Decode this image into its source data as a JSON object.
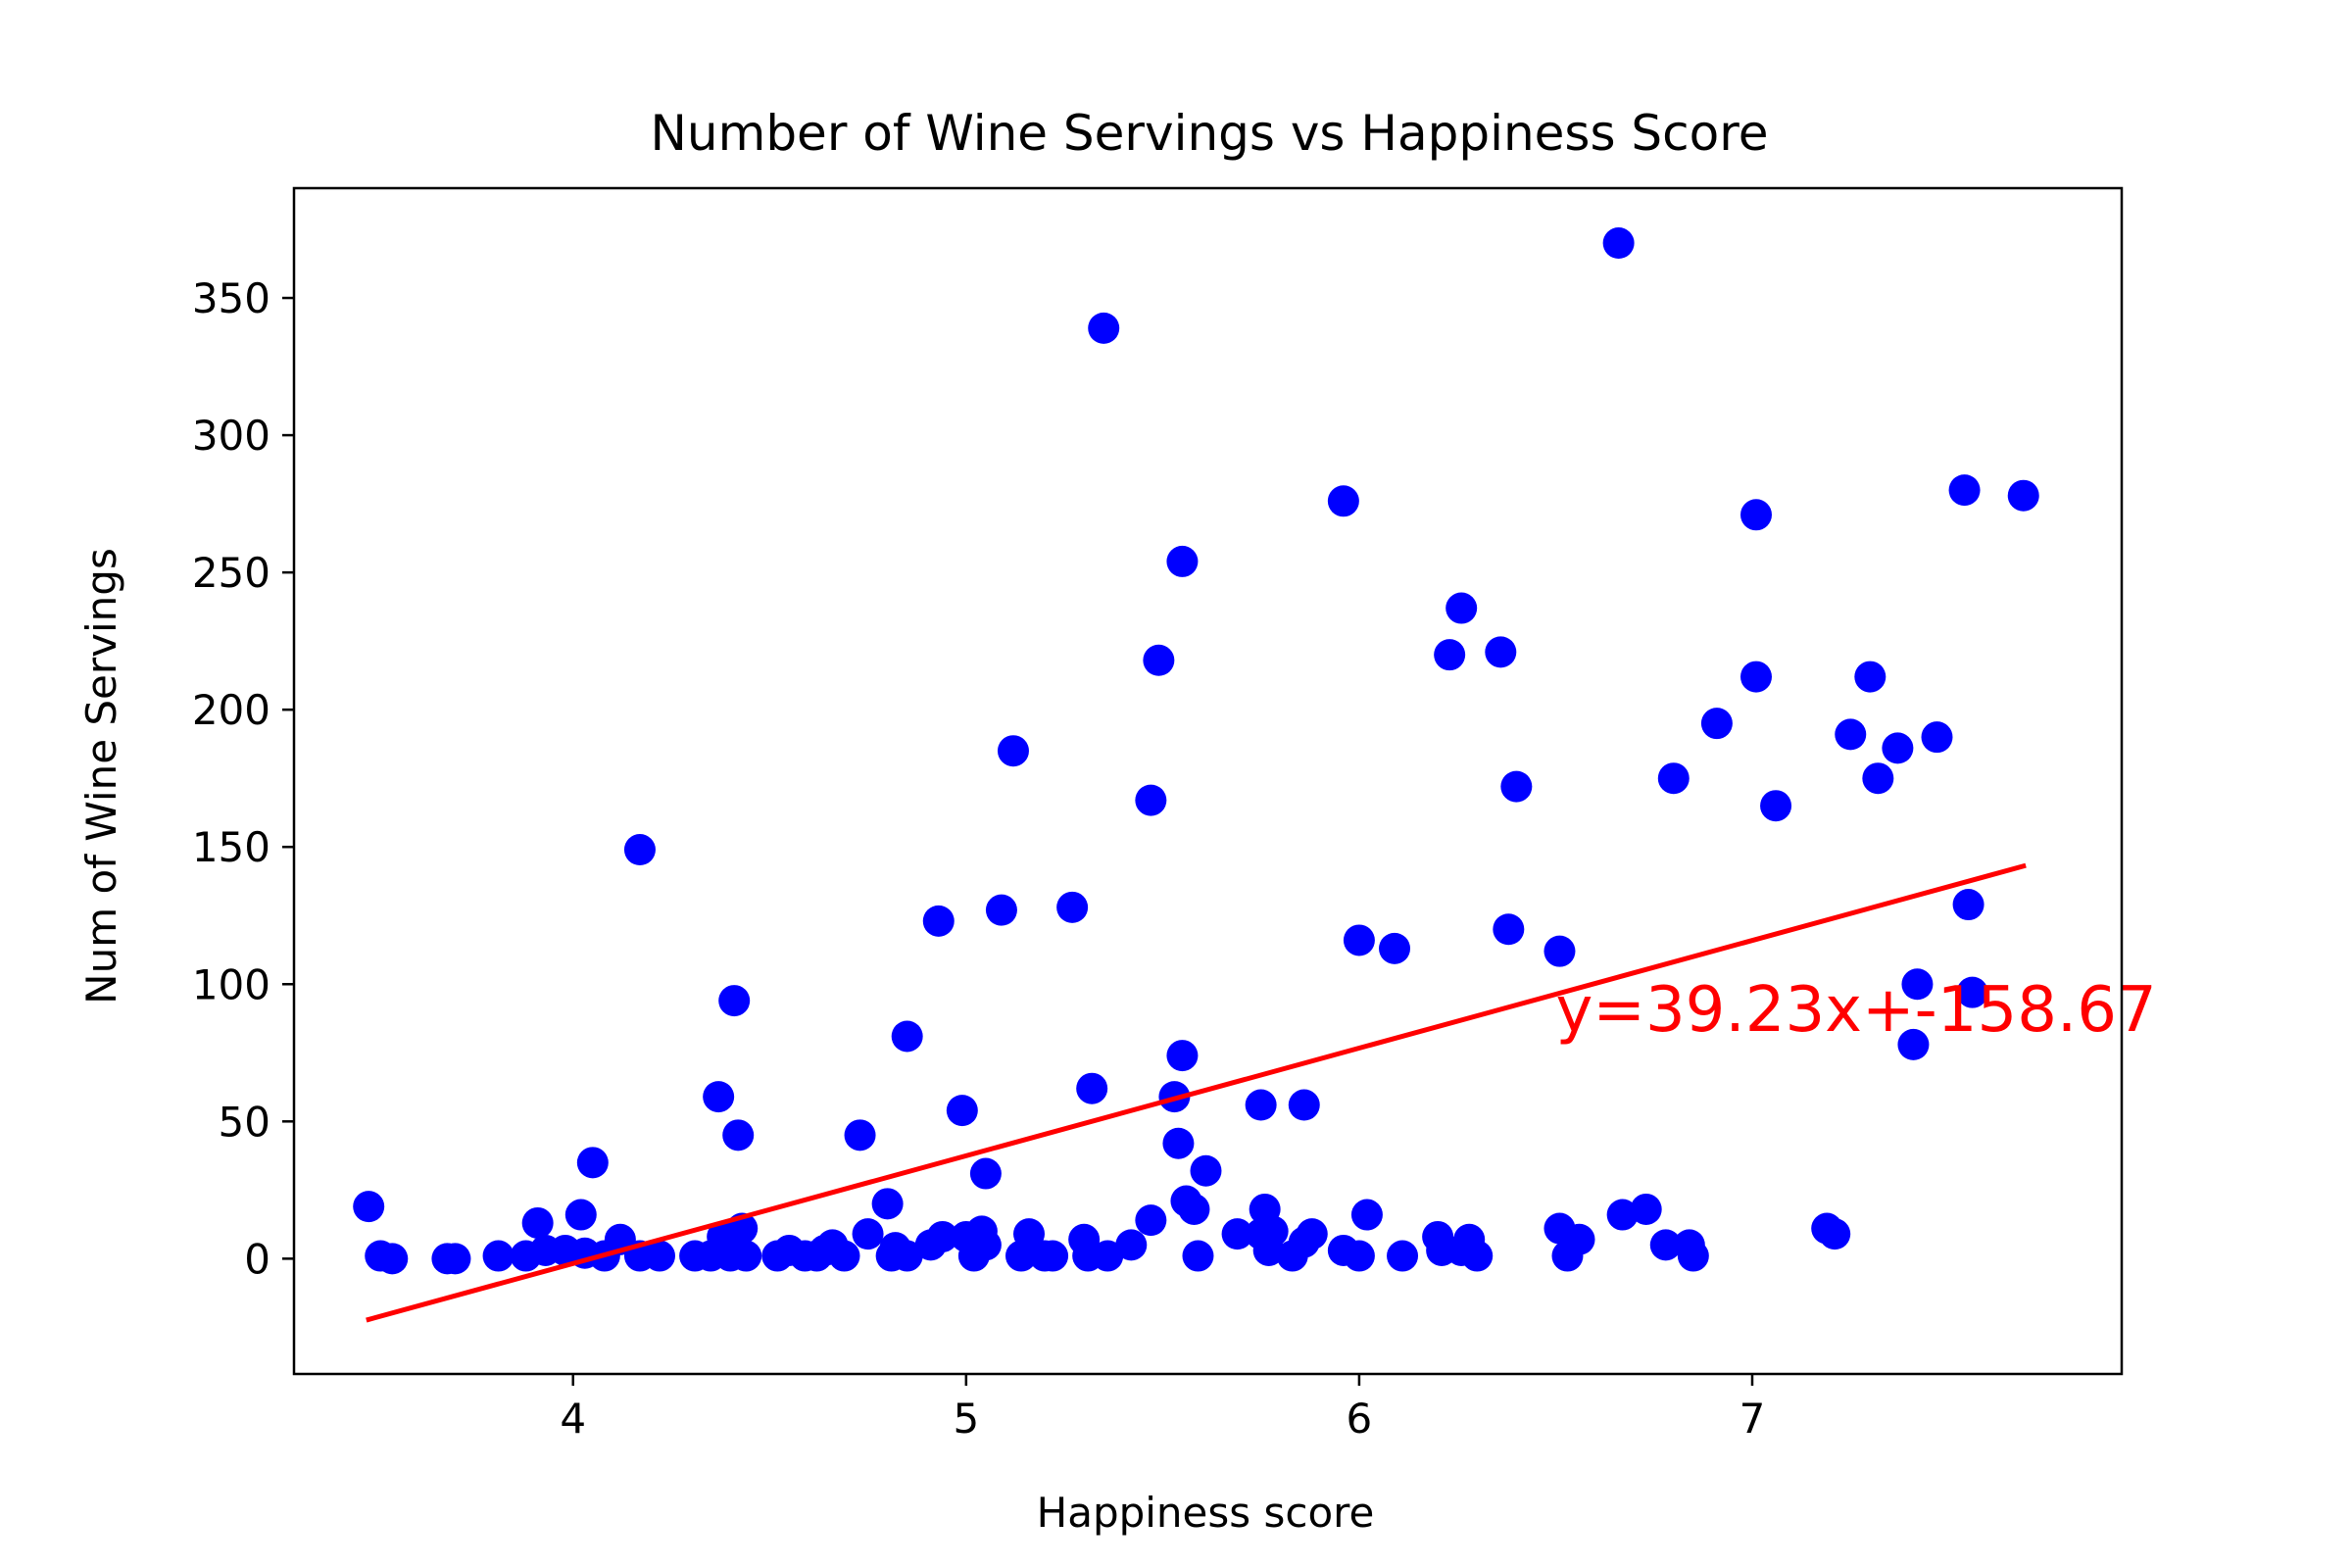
{
  "chart_data": {
    "type": "scatter",
    "title": "Number of Wine Servings vs Happiness Score",
    "xlabel": "Happiness score",
    "ylabel": "Num of Wine Servings",
    "xlim": [
      3.29,
      7.94
    ],
    "ylim": [
      -42,
      390
    ],
    "xticks": [
      4,
      5,
      6,
      7
    ],
    "yticks": [
      0,
      50,
      100,
      150,
      200,
      250,
      300,
      350
    ],
    "grid": false,
    "legend": "none",
    "point_color": "#0000ff",
    "line_color": "#ff0000",
    "regression": {
      "slope": 39.23,
      "intercept": -158.67,
      "x_range": [
        3.48,
        7.69
      ],
      "label": "y=39.23x+-158.67",
      "label_at": [
        6.5,
        83
      ]
    },
    "points": [
      [
        3.48,
        19
      ],
      [
        3.51,
        1
      ],
      [
        3.54,
        0
      ],
      [
        3.68,
        0
      ],
      [
        3.7,
        0
      ],
      [
        3.81,
        1
      ],
      [
        3.88,
        1
      ],
      [
        3.91,
        13
      ],
      [
        3.93,
        3
      ],
      [
        3.98,
        3
      ],
      [
        4.02,
        16
      ],
      [
        4.03,
        2
      ],
      [
        4.05,
        35
      ],
      [
        4.08,
        1
      ],
      [
        4.12,
        7
      ],
      [
        4.17,
        1
      ],
      [
        4.17,
        149
      ],
      [
        4.22,
        1
      ],
      [
        4.31,
        1
      ],
      [
        4.35,
        1
      ],
      [
        4.37,
        59
      ],
      [
        4.38,
        8
      ],
      [
        4.39,
        3
      ],
      [
        4.4,
        1
      ],
      [
        4.41,
        94
      ],
      [
        4.42,
        45
      ],
      [
        4.43,
        11
      ],
      [
        4.44,
        1
      ],
      [
        4.52,
        1
      ],
      [
        4.55,
        3
      ],
      [
        4.59,
        1
      ],
      [
        4.62,
        1
      ],
      [
        4.64,
        3
      ],
      [
        4.66,
        5
      ],
      [
        4.69,
        1
      ],
      [
        4.73,
        45
      ],
      [
        4.75,
        9
      ],
      [
        4.8,
        20
      ],
      [
        4.81,
        1
      ],
      [
        4.82,
        4
      ],
      [
        4.85,
        1
      ],
      [
        4.85,
        81
      ],
      [
        4.91,
        5
      ],
      [
        4.93,
        123
      ],
      [
        4.94,
        8
      ],
      [
        4.99,
        54
      ],
      [
        5.0,
        8
      ],
      [
        5.02,
        1
      ],
      [
        5.04,
        10
      ],
      [
        5.05,
        5
      ],
      [
        5.05,
        31
      ],
      [
        5.09,
        127
      ],
      [
        5.12,
        185
      ],
      [
        5.14,
        1
      ],
      [
        5.16,
        9
      ],
      [
        5.2,
        1
      ],
      [
        5.22,
        1
      ],
      [
        5.27,
        128
      ],
      [
        5.3,
        7
      ],
      [
        5.31,
        1
      ],
      [
        5.32,
        62
      ],
      [
        5.35,
        339
      ],
      [
        5.36,
        1
      ],
      [
        5.42,
        5
      ],
      [
        5.47,
        14
      ],
      [
        5.47,
        167
      ],
      [
        5.49,
        218
      ],
      [
        5.53,
        59
      ],
      [
        5.54,
        42
      ],
      [
        5.55,
        254
      ],
      [
        5.55,
        74
      ],
      [
        5.56,
        21
      ],
      [
        5.58,
        18
      ],
      [
        5.59,
        1
      ],
      [
        5.61,
        32
      ],
      [
        5.69,
        9
      ],
      [
        5.75,
        56
      ],
      [
        5.75,
        9
      ],
      [
        5.76,
        18
      ],
      [
        5.77,
        3
      ],
      [
        5.78,
        10
      ],
      [
        5.83,
        1
      ],
      [
        5.86,
        56
      ],
      [
        5.86,
        6
      ],
      [
        5.88,
        9
      ],
      [
        5.96,
        276
      ],
      [
        5.96,
        3
      ],
      [
        6.0,
        116
      ],
      [
        6.0,
        1
      ],
      [
        6.02,
        16
      ],
      [
        6.09,
        113
      ],
      [
        6.11,
        1
      ],
      [
        6.2,
        8
      ],
      [
        6.21,
        3
      ],
      [
        6.23,
        220
      ],
      [
        6.26,
        237
      ],
      [
        6.26,
        3
      ],
      [
        6.28,
        7
      ],
      [
        6.3,
        1
      ],
      [
        6.36,
        221
      ],
      [
        6.38,
        120
      ],
      [
        6.4,
        172
      ],
      [
        6.51,
        112
      ],
      [
        6.51,
        11
      ],
      [
        6.53,
        1
      ],
      [
        6.56,
        7
      ],
      [
        6.66,
        370
      ],
      [
        6.67,
        16
      ],
      [
        6.73,
        18
      ],
      [
        6.78,
        5
      ],
      [
        6.8,
        175
      ],
      [
        6.84,
        5
      ],
      [
        6.85,
        1
      ],
      [
        6.91,
        195
      ],
      [
        7.01,
        212
      ],
      [
        7.01,
        271
      ],
      [
        7.06,
        165
      ],
      [
        7.19,
        11
      ],
      [
        7.21,
        9
      ],
      [
        7.25,
        191
      ],
      [
        7.3,
        212
      ],
      [
        7.32,
        175
      ],
      [
        7.37,
        186
      ],
      [
        7.41,
        78
      ],
      [
        7.42,
        100
      ],
      [
        7.47,
        190
      ],
      [
        7.54,
        280
      ],
      [
        7.55,
        129
      ],
      [
        7.56,
        97
      ],
      [
        7.69,
        278
      ]
    ]
  }
}
